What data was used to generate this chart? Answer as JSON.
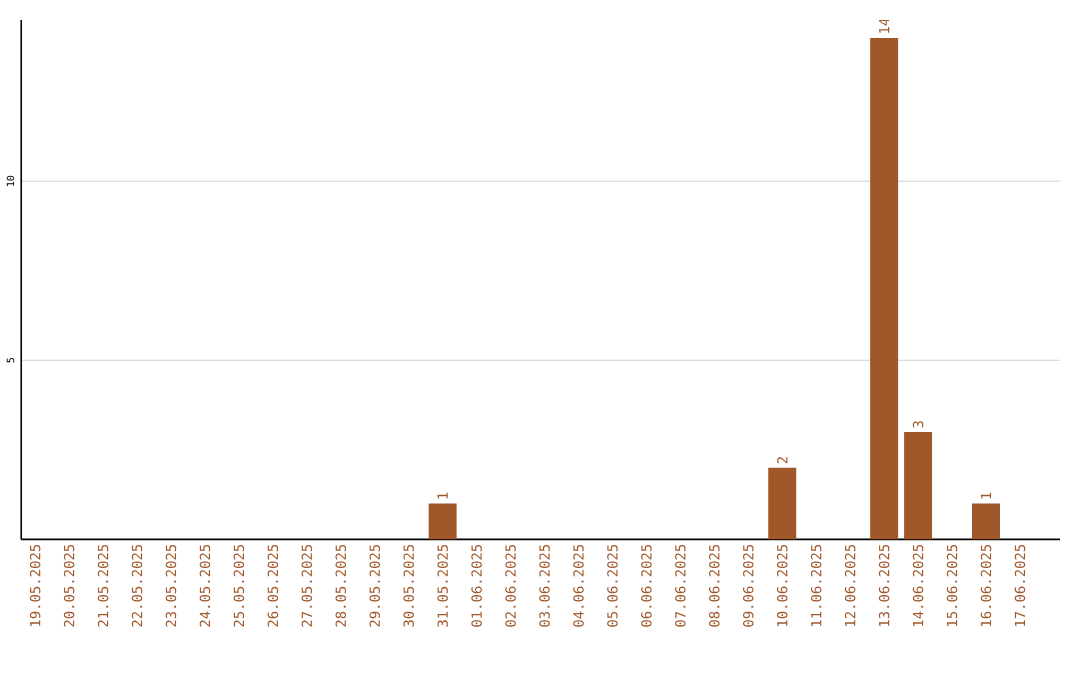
{
  "chart_data": {
    "type": "bar",
    "categories": [
      "19.05.2025",
      "20.05.2025",
      "21.05.2025",
      "22.05.2025",
      "23.05.2025",
      "24.05.2025",
      "25.05.2025",
      "26.05.2025",
      "27.05.2025",
      "28.05.2025",
      "29.05.2025",
      "30.05.2025",
      "31.05.2025",
      "01.06.2025",
      "02.06.2025",
      "03.06.2025",
      "04.06.2025",
      "05.06.2025",
      "06.06.2025",
      "07.06.2025",
      "08.06.2025",
      "09.06.2025",
      "10.06.2025",
      "11.06.2025",
      "12.06.2025",
      "13.06.2025",
      "14.06.2025",
      "15.06.2025",
      "16.06.2025",
      "17.06.2025"
    ],
    "values": [
      0,
      0,
      0,
      0,
      0,
      0,
      0,
      0,
      0,
      0,
      0,
      0,
      1,
      0,
      0,
      0,
      0,
      0,
      0,
      0,
      0,
      0,
      2,
      0,
      0,
      14,
      3,
      0,
      1,
      0
    ],
    "value_labels": [
      null,
      null,
      null,
      null,
      null,
      null,
      null,
      null,
      null,
      null,
      null,
      null,
      "1",
      null,
      null,
      null,
      null,
      null,
      null,
      null,
      null,
      null,
      "2",
      null,
      null,
      "14",
      "3",
      null,
      "1",
      null
    ],
    "color": "#a0572a",
    "ylim": [
      0,
      14.5
    ],
    "yticks": [
      5,
      10
    ],
    "grid": "y"
  }
}
